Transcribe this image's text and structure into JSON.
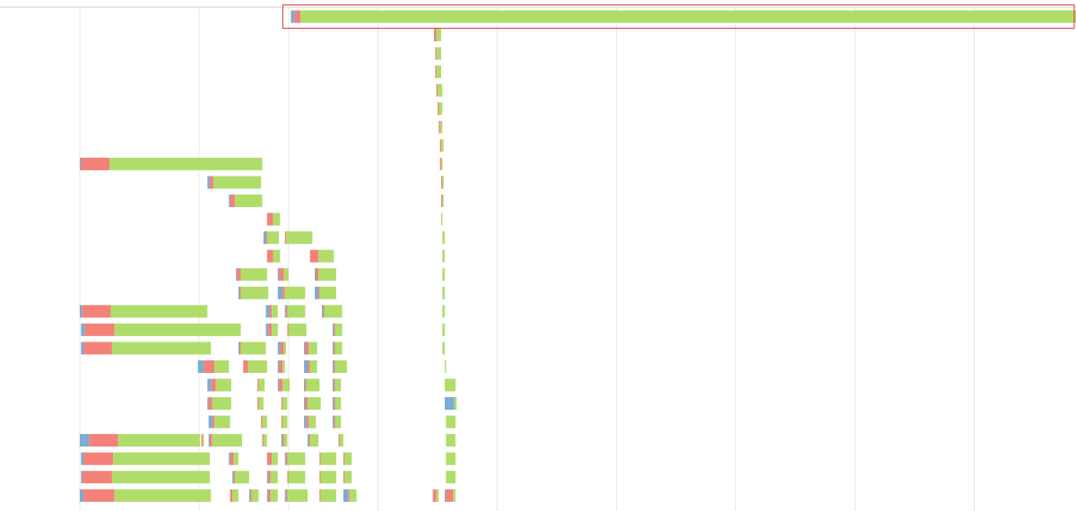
{
  "colors": {
    "dns": "#7badd4",
    "connect": "#f4827a",
    "receive": "#b0dd6a",
    "gridline": "#e8e8e8",
    "highlight": "#d9393f",
    "baseline": "#d0d0d0"
  },
  "chart_data": {
    "type": "bar",
    "subtype": "waterfall-timeline",
    "title": "",
    "xlabel": "",
    "ylabel": "",
    "xlim": [
      0,
      8.3
    ],
    "row_count": 27,
    "x_gridlines": [
      1,
      1.75,
      2.5,
      3.5,
      4.5,
      5.5,
      6.5,
      7.5
    ],
    "grid": true,
    "legend": "none",
    "highlighted_row": 0,
    "series": [
      {
        "key": "dns",
        "color": "#7badd4"
      },
      {
        "key": "connect",
        "color": "#f4827a"
      },
      {
        "key": "receive",
        "color": "#b0dd6a"
      }
    ],
    "rows": [
      [
        [
          1.77,
          0.03,
          0.05,
          6.53
        ]
      ],
      [
        [
          2.97,
          0,
          0.02,
          0.04
        ]
      ],
      [
        [
          2.98,
          0,
          0.01,
          0.04
        ]
      ],
      [
        [
          2.98,
          0,
          0.01,
          0.04
        ]
      ],
      [
        [
          2.99,
          0,
          0.01,
          0.04
        ]
      ],
      [
        [
          3.0,
          0,
          0.01,
          0.03
        ]
      ],
      [
        [
          3.01,
          0,
          0.01,
          0.02
        ]
      ],
      [
        [
          3.02,
          0,
          0.01,
          0.02
        ]
      ],
      [
        [
          0,
          0.01,
          0.24,
          1.28
        ],
        [
          3.02,
          0,
          0.01,
          0.01
        ]
      ],
      [
        [
          1.07,
          0.02,
          0.03,
          0.4
        ],
        [
          3.03,
          0,
          0.01,
          0.01
        ]
      ],
      [
        [
          1.25,
          0.01,
          0.04,
          0.23
        ],
        [
          3.03,
          0,
          0.01,
          0.01
        ]
      ],
      [
        [
          1.57,
          0,
          0.05,
          0.06
        ],
        [
          3.03,
          0,
          0,
          0.01
        ]
      ],
      [
        [
          1.54,
          0.02,
          0.01,
          0.1
        ],
        [
          1.72,
          0,
          0.01,
          0.22
        ],
        [
          3.04,
          0,
          0,
          0.02
        ]
      ],
      [
        [
          1.57,
          0,
          0.05,
          0.06
        ],
        [
          1.93,
          0,
          0.07,
          0.13
        ],
        [
          3.04,
          0,
          0,
          0.02
        ]
      ],
      [
        [
          1.31,
          0.01,
          0.03,
          0.22
        ],
        [
          1.66,
          0.01,
          0.04,
          0.04
        ],
        [
          1.97,
          0.01,
          0.02,
          0.15
        ],
        [
          3.04,
          0,
          0,
          0.02
        ]
      ],
      [
        [
          1.33,
          0.01,
          0.01,
          0.23
        ],
        [
          1.66,
          0.04,
          0.02,
          0.17
        ],
        [
          1.97,
          0.03,
          0.01,
          0.14
        ],
        [
          3.04,
          0,
          0,
          0.02
        ]
      ],
      [
        [
          0,
          0.02,
          0.24,
          0.81
        ],
        [
          1.56,
          0.03,
          0.02,
          0.05
        ],
        [
          1.72,
          0.01,
          0.01,
          0.15
        ],
        [
          2.03,
          0.01,
          0.01,
          0.15
        ],
        [
          3.04,
          0,
          0,
          0.02
        ]
      ],
      [
        [
          0.01,
          0.03,
          0.25,
          1.06
        ],
        [
          1.56,
          0.02,
          0.03,
          0.05
        ],
        [
          1.74,
          0,
          0.01,
          0.15
        ],
        [
          2.12,
          0.01,
          0.01,
          0.06
        ],
        [
          3.04,
          0,
          0,
          0.02
        ]
      ],
      [
        [
          0.01,
          0.02,
          0.24,
          0.83
        ],
        [
          1.33,
          0.01,
          0.01,
          0.21
        ],
        [
          1.66,
          0.02,
          0.03,
          0.02
        ],
        [
          1.88,
          0.01,
          0.03,
          0.07
        ],
        [
          2.12,
          0.01,
          0.01,
          0.06
        ],
        [
          3.04,
          0,
          0,
          0.02
        ]
      ],
      [
        [
          0.99,
          0.05,
          0.09,
          0.12
        ],
        [
          1.37,
          0,
          0.04,
          0.16
        ],
        [
          1.66,
          0.01,
          0.03,
          0.02
        ],
        [
          1.88,
          0.03,
          0.02,
          0.06
        ],
        [
          2.12,
          0.01,
          0.01,
          0.1
        ],
        [
          3.06,
          0,
          0,
          0.01
        ]
      ],
      [
        [
          1.07,
          0.03,
          0.04,
          0.13
        ],
        [
          1.49,
          0,
          0.01,
          0.05
        ],
        [
          1.66,
          0.01,
          0.03,
          0.06
        ],
        [
          1.88,
          0.01,
          0.01,
          0.11
        ],
        [
          2.12,
          0.01,
          0.01,
          0.05
        ],
        [
          3.06,
          0,
          0,
          0.09
        ]
      ],
      [
        [
          1.07,
          0.01,
          0.03,
          0.16
        ],
        [
          1.49,
          0,
          0.01,
          0.04
        ],
        [
          1.69,
          0,
          0.01,
          0.04
        ],
        [
          1.88,
          0.01,
          0.02,
          0.11
        ],
        [
          2.12,
          0.01,
          0.01,
          0.05
        ],
        [
          3.06,
          0.08,
          0,
          0.02
        ]
      ],
      [
        [
          1.08,
          0.03,
          0.02,
          0.13
        ],
        [
          1.52,
          0,
          0.01,
          0.04
        ],
        [
          1.69,
          0,
          0.01,
          0.04
        ],
        [
          1.88,
          0.02,
          0.02,
          0.06
        ],
        [
          2.12,
          0.01,
          0.01,
          0.05
        ],
        [
          3.07,
          0,
          0,
          0.08
        ]
      ],
      [
        [
          0,
          0.08,
          0.24,
          0.69
        ],
        [
          1.02,
          0,
          0.01,
          0.01
        ],
        [
          1.08,
          0.01,
          0.02,
          0.25
        ],
        [
          1.53,
          0,
          0.01,
          0.03
        ],
        [
          1.69,
          0.01,
          0.01,
          0.03
        ],
        [
          1.91,
          0.01,
          0.01,
          0.07
        ],
        [
          2.17,
          0,
          0.01,
          0.03
        ],
        [
          3.07,
          0,
          0,
          0.08
        ]
      ],
      [
        [
          0.01,
          0.02,
          0.25,
          0.81
        ],
        [
          1.25,
          0.01,
          0.03,
          0.04
        ],
        [
          1.57,
          0,
          0.04,
          0.05
        ],
        [
          1.72,
          0.01,
          0.01,
          0.15
        ],
        [
          2.01,
          0,
          0.01,
          0.13
        ],
        [
          2.21,
          0,
          0.01,
          0.06
        ],
        [
          3.07,
          0,
          0,
          0.08
        ]
      ],
      [
        [
          0.01,
          0.01,
          0.25,
          0.82
        ],
        [
          1.28,
          0.01,
          0.01,
          0.12
        ],
        [
          1.57,
          0.01,
          0.02,
          0.06
        ],
        [
          1.74,
          0,
          0.01,
          0.14
        ],
        [
          2.01,
          0,
          0.01,
          0.13
        ],
        [
          2.21,
          0,
          0.01,
          0.06
        ],
        [
          3.07,
          0,
          0,
          0.08
        ]
      ],
      [
        [
          0,
          0.03,
          0.26,
          0.81
        ],
        [
          1.26,
          0,
          0.02,
          0.05
        ],
        [
          1.42,
          0.01,
          0.01,
          0.06
        ],
        [
          1.57,
          0.01,
          0.02,
          0.06
        ],
        [
          1.72,
          0.01,
          0.01,
          0.17
        ],
        [
          2.01,
          0,
          0.01,
          0.13
        ],
        [
          2.21,
          0.04,
          0.01,
          0.06
        ],
        [
          2.96,
          0,
          0.03,
          0.02
        ],
        [
          3.06,
          0.01,
          0.06,
          0.02
        ]
      ]
    ]
  }
}
